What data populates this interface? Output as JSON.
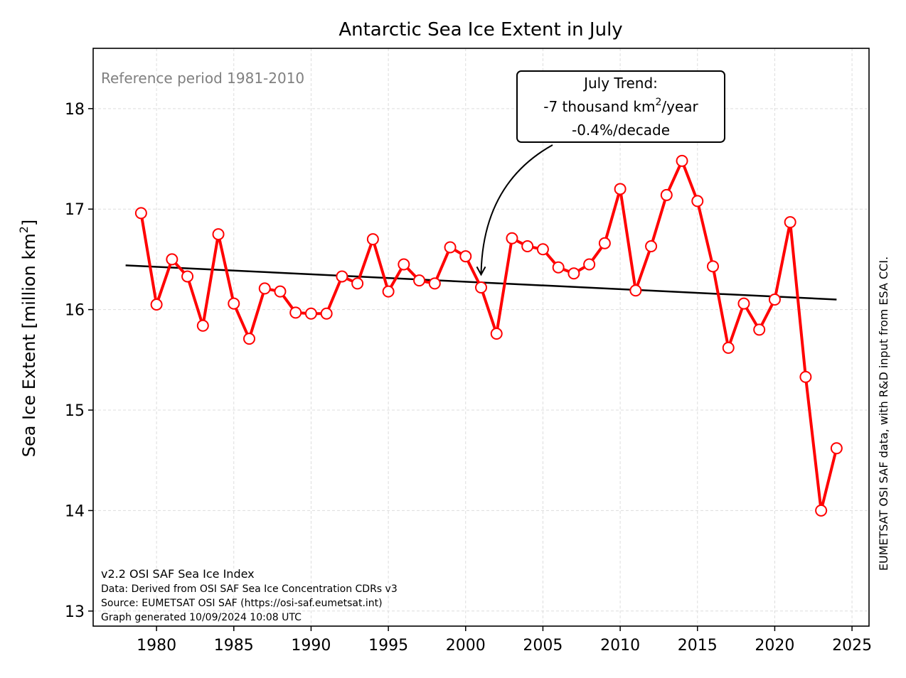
{
  "chart_data": {
    "type": "line",
    "title": "Antarctic Sea Ice Extent in July",
    "ylabel_prefix": "Sea Ice Extent [million km",
    "ylabel_sup": "2",
    "ylabel_suffix": "]",
    "xlabel": "",
    "xlim": [
      1975.9,
      2026.1
    ],
    "ylim": [
      12.85,
      18.6
    ],
    "xticks": [
      1980,
      1985,
      1990,
      1995,
      2000,
      2005,
      2010,
      2015,
      2020,
      2025
    ],
    "yticks": [
      13,
      14,
      15,
      16,
      17,
      18
    ],
    "grid": true,
    "colors": {
      "series": "#ff0000",
      "trend": "#000000",
      "marker_fill": "#ffffff",
      "reference_text": "#808080"
    },
    "series": [
      {
        "x": [
          1979,
          1980,
          1981,
          1982,
          1983,
          1984,
          1985,
          1986,
          1987,
          1988,
          1989,
          1990,
          1991,
          1992,
          1993,
          1994,
          1995,
          1996,
          1997,
          1998,
          1999,
          2000,
          2001,
          2002,
          2003,
          2004,
          2005,
          2006,
          2007,
          2008,
          2009,
          2010,
          2011,
          2012,
          2013,
          2014,
          2015,
          2016,
          2017,
          2018,
          2019,
          2020,
          2021,
          2022,
          2023,
          2024
        ],
        "values": [
          16.96,
          16.05,
          16.5,
          16.33,
          15.84,
          16.75,
          16.06,
          15.71,
          16.21,
          16.18,
          15.97,
          15.96,
          15.96,
          16.33,
          16.26,
          16.7,
          16.18,
          16.45,
          16.29,
          16.26,
          16.62,
          16.53,
          16.22,
          15.76,
          16.71,
          16.63,
          16.6,
          16.42,
          16.36,
          16.45,
          16.66,
          17.2,
          16.19,
          16.63,
          17.14,
          17.48,
          17.08,
          16.43,
          15.62,
          16.06,
          15.8,
          16.1,
          16.87,
          15.33,
          14.0,
          14.62
        ]
      }
    ],
    "trend": {
      "x": [
        1978,
        2024
      ],
      "values": [
        16.44,
        16.1
      ]
    },
    "reference_label": "Reference period 1981-2010",
    "trend_box": {
      "line1": "July Trend:",
      "line2_prefix": "-7 thousand km",
      "line2_sup": "2",
      "line2_suffix": "/year",
      "line3": "-0.4%/decade",
      "arrow_target": {
        "x": 2001,
        "value": 16.32
      }
    },
    "footer_lines": [
      "v2.2 OSI SAF Sea Ice Index",
      "Data: Derived from OSI SAF Sea Ice Concentration CDRs v3",
      "Source: EUMETSAT OSI SAF (https://osi-saf.eumetsat.int)",
      "Graph generated 10/09/2024 10:08 UTC"
    ],
    "side_note": "EUMETSAT OSI SAF data, with R&D input from ESA CCI."
  }
}
